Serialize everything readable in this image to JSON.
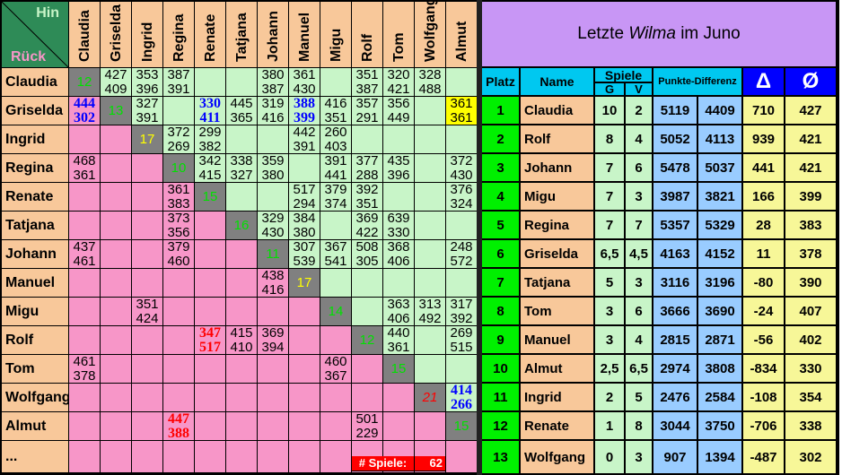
{
  "corner": {
    "hin": "Hin",
    "rueck": "Rück"
  },
  "players": [
    "Claudia",
    "Griselda",
    "Ingrid",
    "Regina",
    "Renate",
    "Tatjana",
    "Johann",
    "Manuel",
    "Migu",
    "Rolf",
    "Tom",
    "Wolfgang",
    "Almut"
  ],
  "ellipsis_row": "...",
  "matrix": [
    [
      {
        "d": "12"
      },
      [
        "427",
        "409"
      ],
      [
        "353",
        "396"
      ],
      [
        "387",
        "391"
      ],
      null,
      null,
      [
        "380",
        "387"
      ],
      [
        "361",
        "430"
      ],
      null,
      [
        "351",
        "387"
      ],
      [
        "320",
        "421"
      ],
      [
        "328",
        "488"
      ],
      null
    ],
    [
      [
        "444",
        "302",
        "blue"
      ],
      {
        "d": "13"
      },
      [
        "327",
        "391"
      ],
      null,
      [
        "330",
        "411",
        "blue"
      ],
      [
        "445",
        "365"
      ],
      [
        "319",
        "416"
      ],
      [
        "388",
        "399",
        "blue"
      ],
      [
        "416",
        "351"
      ],
      [
        "357",
        "291"
      ],
      [
        "356",
        "449"
      ],
      null,
      [
        "361",
        "361",
        "yellow"
      ]
    ],
    [
      null,
      null,
      {
        "d": "17",
        "c": "yellow"
      },
      [
        "372",
        "269"
      ],
      [
        "299",
        "382"
      ],
      null,
      null,
      [
        "442",
        "391"
      ],
      [
        "260",
        "403"
      ],
      null,
      null,
      null,
      null
    ],
    [
      [
        "468",
        "361"
      ],
      null,
      null,
      {
        "d": "10"
      },
      [
        "342",
        "415"
      ],
      [
        "338",
        "327"
      ],
      [
        "359",
        "380"
      ],
      null,
      [
        "391",
        "441"
      ],
      [
        "377",
        "288"
      ],
      [
        "435",
        "396"
      ],
      null,
      [
        "372",
        "430"
      ]
    ],
    [
      null,
      null,
      null,
      [
        "361",
        "383"
      ],
      {
        "d": "15"
      },
      null,
      null,
      [
        "517",
        "294"
      ],
      [
        "379",
        "374"
      ],
      [
        "392",
        "351"
      ],
      null,
      null,
      [
        "376",
        "324"
      ]
    ],
    [
      null,
      null,
      null,
      [
        "373",
        "356"
      ],
      null,
      {
        "d": "16"
      },
      [
        "329",
        "430"
      ],
      [
        "384",
        "380"
      ],
      null,
      [
        "369",
        "422"
      ],
      [
        "639",
        "330"
      ],
      null,
      null
    ],
    [
      [
        "437",
        "461"
      ],
      null,
      null,
      [
        "379",
        "460"
      ],
      null,
      null,
      {
        "d": "11"
      },
      [
        "307",
        "539"
      ],
      [
        "367",
        "541"
      ],
      [
        "508",
        "305"
      ],
      [
        "368",
        "406"
      ],
      null,
      [
        "248",
        "572"
      ]
    ],
    [
      null,
      null,
      null,
      null,
      null,
      null,
      [
        "438",
        "416"
      ],
      {
        "d": "17",
        "c": "yellow"
      },
      null,
      null,
      null,
      null,
      null
    ],
    [
      null,
      null,
      [
        "351",
        "424"
      ],
      null,
      null,
      null,
      null,
      null,
      {
        "d": "14"
      },
      null,
      [
        "363",
        "406"
      ],
      [
        "313",
        "492"
      ],
      [
        "317",
        "392"
      ]
    ],
    [
      null,
      null,
      null,
      null,
      [
        "347",
        "517",
        "red"
      ],
      [
        "415",
        "410"
      ],
      [
        "369",
        "394"
      ],
      null,
      null,
      {
        "d": "12"
      },
      [
        "440",
        "361"
      ],
      null,
      [
        "269",
        "515"
      ]
    ],
    [
      [
        "461",
        "378"
      ],
      null,
      null,
      null,
      null,
      null,
      null,
      null,
      [
        "460",
        "367"
      ],
      null,
      {
        "d": "15"
      },
      null,
      null
    ],
    [
      null,
      null,
      null,
      null,
      null,
      null,
      null,
      null,
      null,
      null,
      null,
      {
        "d": "21",
        "c": "red"
      },
      [
        "414",
        "266",
        "blue"
      ]
    ],
    [
      null,
      null,
      null,
      [
        "447",
        "388",
        "red"
      ],
      null,
      null,
      null,
      null,
      null,
      [
        "501",
        "229"
      ],
      null,
      null,
      {
        "d": "15"
      }
    ]
  ],
  "games": {
    "label": "# Spiele:",
    "value": "62"
  },
  "standings": {
    "title_pre": "Letzte ",
    "title_em": "Wilma",
    "title_post": " im Juno",
    "headers": {
      "platz": "Platz",
      "name": "Name",
      "spiele": "Spiele",
      "g": "G",
      "v": "V",
      "punkte": "Punkte-Differenz",
      "delta": "Δ",
      "avg": "Ø"
    },
    "rows": [
      [
        "1",
        "Claudia",
        "10",
        "2",
        "5119",
        "4409",
        "710",
        "427"
      ],
      [
        "2",
        "Rolf",
        "8",
        "4",
        "5052",
        "4113",
        "939",
        "421"
      ],
      [
        "3",
        "Johann",
        "7",
        "6",
        "5478",
        "5037",
        "441",
        "421"
      ],
      [
        "4",
        "Migu",
        "7",
        "3",
        "3987",
        "3821",
        "166",
        "399"
      ],
      [
        "5",
        "Regina",
        "7",
        "7",
        "5357",
        "5329",
        "28",
        "383"
      ],
      [
        "6",
        "Griselda",
        "6,5",
        "4,5",
        "4163",
        "4152",
        "11",
        "378"
      ],
      [
        "7",
        "Tatjana",
        "5",
        "3",
        "3116",
        "3196",
        "-80",
        "390"
      ],
      [
        "8",
        "Tom",
        "3",
        "6",
        "3666",
        "3690",
        "-24",
        "407"
      ],
      [
        "9",
        "Manuel",
        "3",
        "4",
        "2815",
        "2871",
        "-56",
        "402"
      ],
      [
        "10",
        "Almut",
        "2,5",
        "6,5",
        "2974",
        "3808",
        "-834",
        "330"
      ],
      [
        "11",
        "Ingrid",
        "2",
        "5",
        "2476",
        "2584",
        "-108",
        "354"
      ],
      [
        "12",
        "Renate",
        "1",
        "8",
        "3044",
        "3750",
        "-706",
        "338"
      ],
      [
        "13",
        "Wolfgang",
        "0",
        "3",
        "907",
        "1394",
        "-487",
        "302"
      ]
    ]
  },
  "colors": {
    "header": "#F8C89A",
    "upper": "#C8F5C8",
    "lower": "#F796C8",
    "diag": "#808080",
    "corner": "#2E8B57",
    "title": "#C896F5",
    "cyan": "#00C8F0",
    "blue_head": "#0000FF",
    "rank": "#00F000",
    "points": "#99CCFF",
    "stat": "#F7F798"
  }
}
